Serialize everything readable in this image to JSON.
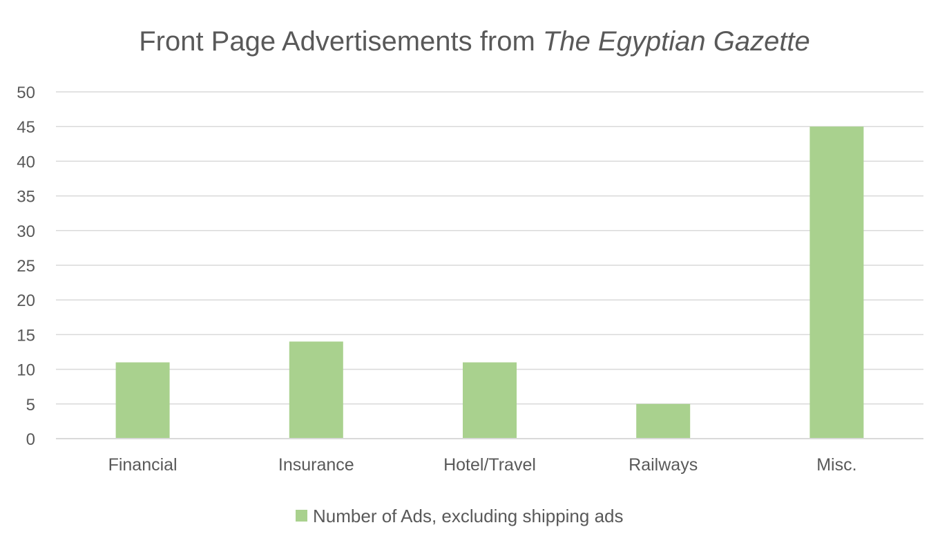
{
  "chart_data": {
    "type": "bar",
    "title": "Front Page Advertisements from ",
    "title_italic": "The Egyptian Gazette",
    "categories": [
      "Financial",
      "Insurance",
      "Hotel/Travel",
      "Railways",
      "Misc."
    ],
    "series": [
      {
        "name": "Number of Ads, excluding shipping ads",
        "values": [
          11,
          14,
          11,
          5,
          45
        ],
        "color": "#a9d18e"
      }
    ],
    "yticks": [
      "0",
      "5",
      "10",
      "15",
      "20",
      "25",
      "30",
      "35",
      "40",
      "45",
      "50"
    ],
    "ylim": [
      0,
      50
    ],
    "xlabel": "",
    "ylabel": "",
    "grid": true,
    "legend_position": "bottom"
  }
}
